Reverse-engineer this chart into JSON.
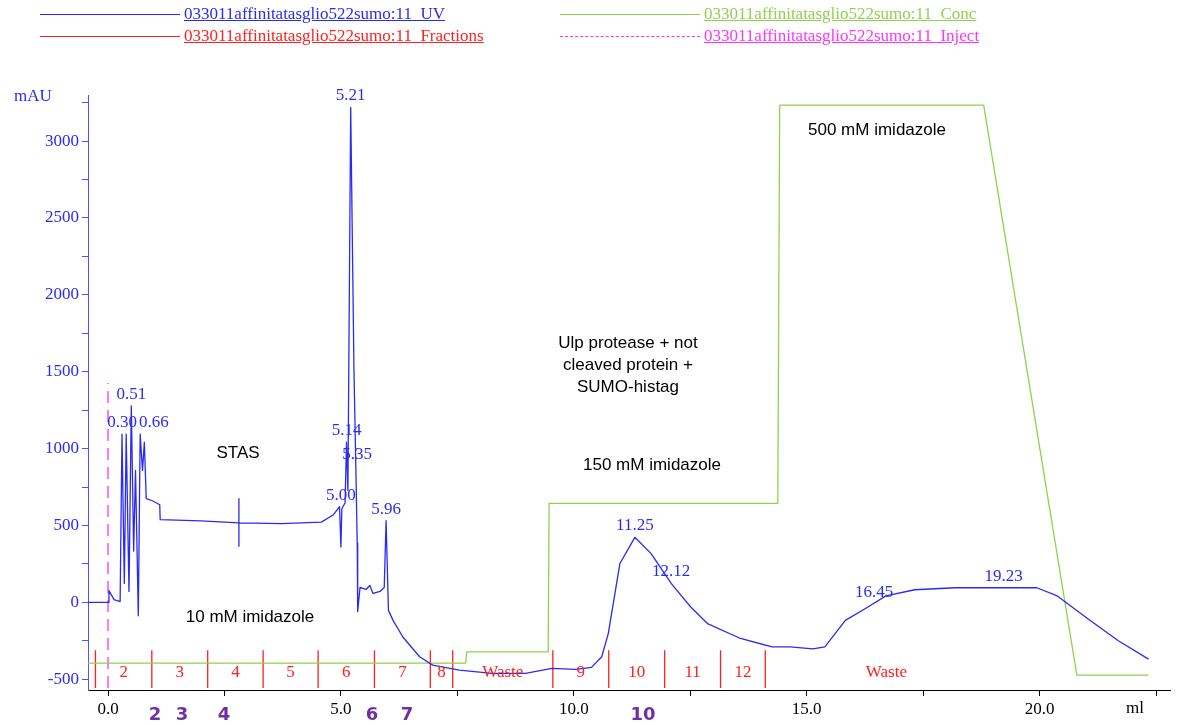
{
  "chart_data": {
    "type": "line",
    "xlabel": "ml",
    "ylabel": "mAU",
    "xlim": [
      -0.43,
      22.8
    ],
    "ylim": [
      -570,
      3300
    ],
    "xticks": [
      {
        "value": 0,
        "label": "0.0"
      },
      {
        "value": 2.5,
        "label": null
      },
      {
        "value": 5,
        "label": "5.0"
      },
      {
        "value": 7.5,
        "label": null
      },
      {
        "value": 10,
        "label": "10.0"
      },
      {
        "value": 12.5,
        "label": null
      },
      {
        "value": 15,
        "label": "15.0"
      },
      {
        "value": 17.5,
        "label": null
      },
      {
        "value": 20,
        "label": "20.0"
      },
      {
        "value": 22.5,
        "label": null
      }
    ],
    "yticks": [
      -500,
      {
        "value": -250,
        "label": null
      },
      0,
      {
        "value": 250,
        "label": null
      },
      500,
      {
        "value": 750,
        "label": null
      },
      1000,
      {
        "value": 1250,
        "label": null
      },
      1500,
      {
        "value": 1750,
        "label": null
      },
      2000,
      {
        "value": 2250,
        "label": null
      },
      2500,
      {
        "value": 2750,
        "label": null
      },
      3000,
      {
        "value": 3250,
        "label": null
      }
    ],
    "grid": false,
    "legend": "top",
    "marker": "none",
    "series": [
      {
        "name": "033011affinitatasglio522sumo:11_UV",
        "color": "#2b2bf0",
        "x": [
          -0.43,
          0,
          0.02,
          0.13,
          0.26,
          0.3,
          0.35,
          0.39,
          0.45,
          0.5,
          0.55,
          0.59,
          0.65,
          0.69,
          0.74,
          0.78,
          0.82,
          0.95,
          1.11,
          1.12,
          1.99,
          2.81,
          2.81,
          2.81,
          2.81,
          3.72,
          4.58,
          4.84,
          4.97,
          5.0,
          5.02,
          5.09,
          5.12,
          5.15,
          5.21,
          5.28,
          5.32,
          5.35,
          5.36,
          5.41,
          5.54,
          5.62,
          5.69,
          5.84,
          5.93,
          5.97,
          6.02,
          6.12,
          6.33,
          6.69,
          6.97,
          7.54,
          8.25,
          8.96,
          9.53,
          10.03,
          10.38,
          10.6,
          10.74,
          10.99,
          11.31,
          11.66,
          12.09,
          12.51,
          12.87,
          13.58,
          14.26,
          14.64,
          15.13,
          15.39,
          15.83,
          16.27,
          16.7,
          17.32,
          18.19,
          19.06,
          19.94,
          20.38,
          21.08,
          21.69,
          22.34
        ],
        "values": [
          0,
          0,
          76,
          18,
          5,
          1094,
          123,
          1094,
          71,
          1278,
          333,
          858,
          -87,
          1094,
          858,
          1042,
          675,
          661,
          635,
          538,
          530,
          517,
          675,
          365,
          517,
          512,
          522,
          570,
          622,
          360,
          609,
          648,
          1042,
          727,
          3220,
          1514,
          885,
          386,
          -60,
          97,
          84,
          110,
          58,
          71,
          97,
          531,
          -52,
          -117,
          -225,
          -354,
          -408,
          -441,
          -462,
          -462,
          -430,
          -436,
          -423,
          -354,
          -203,
          253,
          423,
          317,
          123,
          -30,
          -138,
          -235,
          -290,
          -290,
          -303,
          -290,
          -117,
          -38,
          42,
          82,
          95,
          95,
          95,
          42,
          -117,
          -250,
          -369
        ]
      },
      {
        "name": "033011affinitatasglio522sumo:11_Conc",
        "color": "#92d050",
        "x": [
          -0.43,
          7.68,
          7.7,
          9.45,
          9.47,
          14.38,
          14.42,
          18.8,
          20.8,
          22.34
        ],
        "values": [
          -395,
          -395,
          -322,
          -322,
          644,
          644,
          3234,
          3234,
          -473,
          -473
        ]
      },
      {
        "name": "033011affinitatasglio522sumo:11_Fractions",
        "color": "#ff2020",
        "x": [
          -0.27,
          -0.27,
          null,
          0.94,
          0.94,
          null,
          2.14,
          2.14,
          null,
          3.33,
          3.33,
          null,
          4.51,
          4.51,
          null,
          5.72,
          5.72,
          null,
          6.92,
          6.92,
          null,
          7.4,
          7.4,
          null,
          9.55,
          9.55,
          null,
          10.75,
          10.75,
          null,
          11.95,
          11.95,
          null,
          13.15,
          13.15,
          null,
          14.11,
          14.11
        ],
        "values": [
          -557,
          -311,
          null,
          -557,
          -311,
          null,
          -557,
          -311,
          null,
          -557,
          -311,
          null,
          -557,
          -311,
          null,
          -557,
          -311,
          null,
          -557,
          -311,
          null,
          -557,
          -311,
          null,
          -557,
          -311,
          null,
          -557,
          -311,
          null,
          -557,
          -311,
          null,
          -557,
          -311,
          null,
          -557,
          -311
        ]
      },
      {
        "name": "033011affinitatasglio522sumo:11_Inject",
        "color": "#ff33ff",
        "line_style": "dashed",
        "x": [
          0,
          0
        ],
        "values": [
          -557,
          1426
        ]
      }
    ],
    "annotations": [
      {
        "text": "0.30",
        "x": 0.3,
        "y": 1094
      },
      {
        "text": "0.51",
        "x": 0.5,
        "y": 1278
      },
      {
        "text": "0.66",
        "x": 0.69,
        "y": 1094
      },
      {
        "text": "5.00",
        "x": 5.0,
        "y": 622
      },
      {
        "text": "5.14",
        "x": 5.12,
        "y": 1042
      },
      {
        "text": "5.21",
        "x": 5.21,
        "y": 3220
      },
      {
        "text": "5.35",
        "x": 5.35,
        "y": 885
      },
      {
        "text": "5.96",
        "x": 5.97,
        "y": 531
      },
      {
        "text": "11.25",
        "x": 11.31,
        "y": 423
      },
      {
        "text": "12.12",
        "x": 12.09,
        "y": 123
      },
      {
        "text": "16.45",
        "x": 16.45,
        "y": -10
      },
      {
        "text": "19.23",
        "x": 19.23,
        "y": 95
      },
      "2",
      "3",
      "4",
      "5",
      "6",
      "7",
      "8",
      "Waste",
      "9",
      "10",
      "11",
      "12",
      "Waste",
      "STAS",
      "10 mM imidazole",
      "Ulp protease + not\ncleaved protein +\nSUMO-histag",
      "150 mM imidazole",
      "500 mM imidazole",
      "2",
      "3",
      "4",
      "6",
      "7",
      "10"
    ]
  }
}
